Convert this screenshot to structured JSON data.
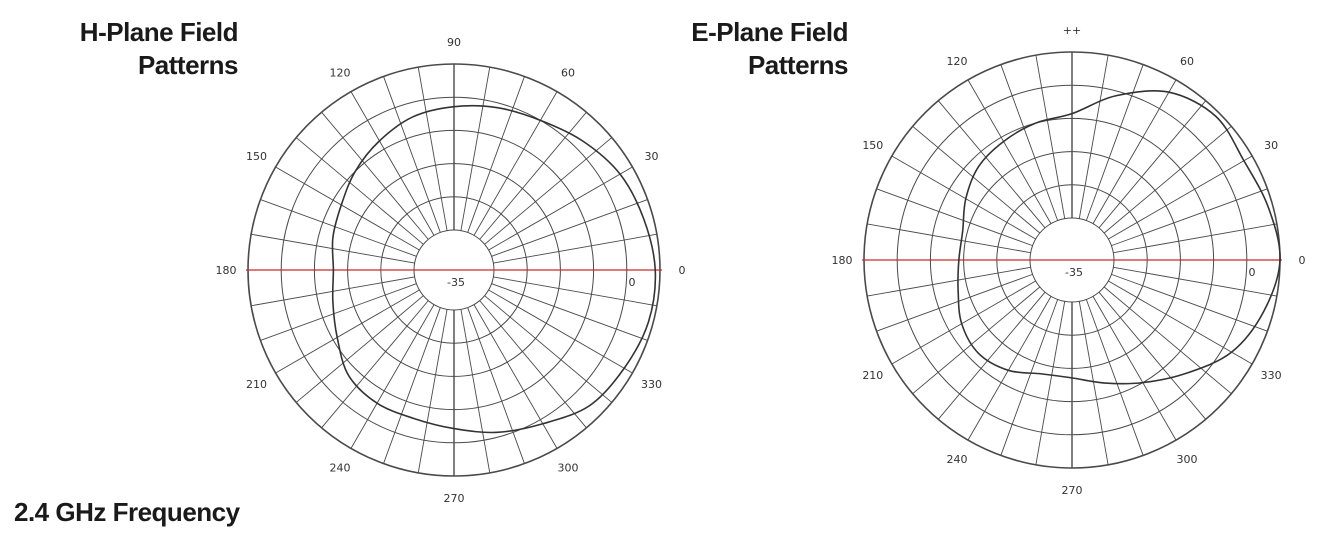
{
  "footer": "2.4 GHz Frequency",
  "colors": {
    "grid": "#4a4a4a",
    "axis0": "#cc2b2b",
    "trace": "#333333"
  },
  "chart_data": [
    {
      "type": "polar",
      "title_lines": [
        "H-Plane Field",
        "Patterns"
      ],
      "rlim": [
        -35,
        0
      ],
      "grid": true,
      "angle_ticks": [
        {
          "deg": 0,
          "label": "0"
        },
        {
          "deg": 30,
          "label": "30"
        },
        {
          "deg": 60,
          "label": "60"
        },
        {
          "deg": 90,
          "label": "90"
        },
        {
          "deg": 120,
          "label": "120"
        },
        {
          "deg": 150,
          "label": "150"
        },
        {
          "deg": 180,
          "label": "180"
        },
        {
          "deg": 210,
          "label": "210"
        },
        {
          "deg": 240,
          "label": "240"
        },
        {
          "deg": 270,
          "label": "270"
        },
        {
          "deg": 300,
          "label": "300"
        },
        {
          "deg": 330,
          "label": "330"
        }
      ],
      "r_labels": [
        {
          "value": -35,
          "label": "-35"
        },
        {
          "value": 0,
          "label": "0"
        }
      ],
      "series": [
        {
          "angles": [
            0,
            15,
            30,
            45,
            60,
            75,
            90,
            105,
            120,
            135,
            150,
            165,
            180,
            195,
            210,
            225,
            240,
            255,
            270,
            285,
            300,
            315,
            330,
            345
          ],
          "values": [
            -1,
            -2,
            -3,
            -5,
            -7,
            -8,
            -9,
            -10,
            -12,
            -14,
            -16,
            -17,
            -18,
            -17,
            -15,
            -12,
            -11,
            -11,
            -10,
            -8,
            -6,
            -3,
            -2,
            -1
          ]
        }
      ]
    },
    {
      "type": "polar",
      "title_lines": [
        "E-Plane Field",
        "Patterns"
      ],
      "rlim": [
        -35,
        0
      ],
      "grid": true,
      "angle_ticks": [
        {
          "deg": 0,
          "label": "0"
        },
        {
          "deg": 30,
          "label": "30"
        },
        {
          "deg": 60,
          "label": "60"
        },
        {
          "deg": 90,
          "label": "++"
        },
        {
          "deg": 120,
          "label": "120"
        },
        {
          "deg": 150,
          "label": "150"
        },
        {
          "deg": 180,
          "label": "180"
        },
        {
          "deg": 210,
          "label": "210"
        },
        {
          "deg": 240,
          "label": "240"
        },
        {
          "deg": 270,
          "label": "270"
        },
        {
          "deg": 300,
          "label": "300"
        },
        {
          "deg": 330,
          "label": "330"
        }
      ],
      "r_labels": [
        {
          "value": -35,
          "label": "-35"
        },
        {
          "value": 0,
          "label": "0"
        }
      ],
      "series": [
        {
          "angles": [
            0,
            15,
            30,
            45,
            60,
            75,
            90,
            105,
            120,
            135,
            150,
            165,
            180,
            195,
            210,
            225,
            240,
            255,
            270,
            285,
            300,
            315,
            330,
            345
          ],
          "values": [
            0,
            -1,
            -2,
            -1,
            -3,
            -8,
            -13,
            -14,
            -15,
            -16,
            -18,
            -20,
            -20,
            -19,
            -17,
            -16,
            -17,
            -19,
            -19,
            -17,
            -14,
            -10,
            -5,
            -2
          ]
        }
      ]
    }
  ]
}
